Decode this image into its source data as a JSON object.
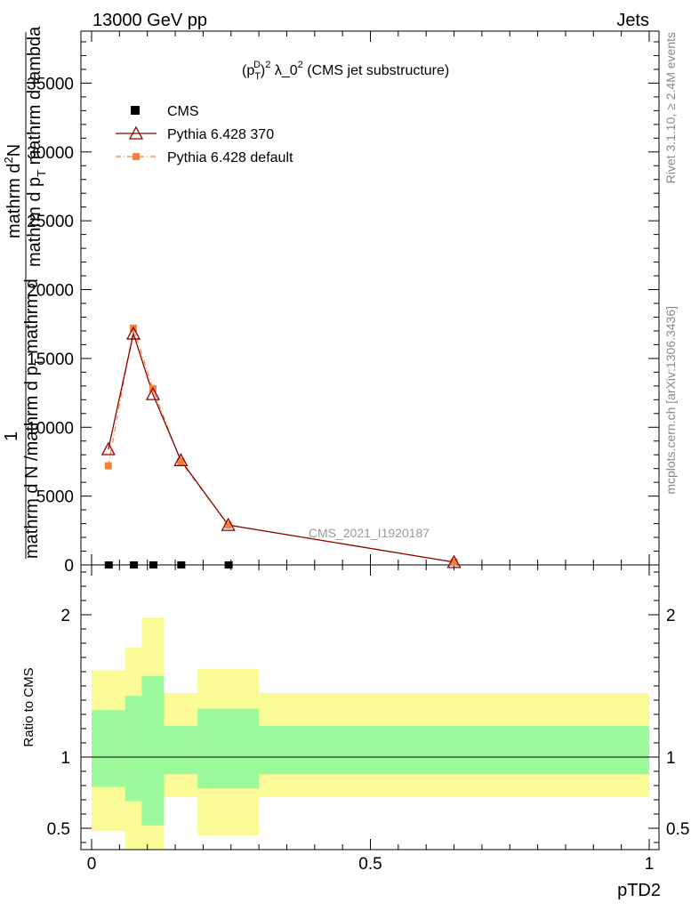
{
  "header": {
    "energy_label": "13000 GeV pp",
    "process_label": "Jets"
  },
  "side_labels": {
    "rivet": "Rivet 3.1.10, ≥ 2.4M events",
    "mcplots": "mcplots.cern.ch [arXiv:1306.3436]"
  },
  "main_plot": {
    "title_prefix": "(p",
    "title_sub": "T",
    "title_sup": "D",
    "title_main": ")",
    "title_suffix_sup": "2",
    "title_rest": " λ_0",
    "title_rest_sup": "2",
    "title_tail": " (CMS jet substructure)",
    "ylabel_top_1": "mathrm d",
    "ylabel_top_2": "N",
    "ylabel_top_3": "mathrm d p",
    "ylabel_top_4": "T",
    "ylabel_top_5": " mathrm d lambda",
    "ylabel_bottom_1": "mathrm d N /mathrm d p",
    "ylabel_bottom_2": "T",
    "ylabel_bottom_3": " mathrm d",
    "ylabel_one": "1",
    "ylabel_superscript": "2",
    "watermark": "CMS_2021_I1920187"
  },
  "ratio_plot": {
    "ylabel": "Ratio to CMS",
    "xlabel": "pTD2"
  },
  "legend": {
    "entries": [
      "CMS",
      "Pythia 6.428 370",
      "Pythia 6.428 default"
    ]
  },
  "colors": {
    "cms": "#000000",
    "pythia370": "#8b0000",
    "pythia_default": "#f5823c",
    "band_inner": "#9bf99b",
    "band_outer": "#fafa96"
  },
  "chart_data": {
    "type": "line",
    "title": "(p_T^D)^2 λ_0^2 (CMS jet substructure)",
    "xlabel": "pTD2",
    "ylabel": "1/(mathrm d N /mathrm d p_T mathrm d) mathrm d^2N/(mathrm d p_T mathrm d lambda)",
    "xlim": [
      0,
      1
    ],
    "ylim": [
      0,
      38000
    ],
    "y_ticks": [
      0,
      5000,
      10000,
      15000,
      20000,
      25000,
      30000,
      35000
    ],
    "x_ticks": [
      0,
      0.5,
      1
    ],
    "x_tick_labels": [
      "0",
      "0.5",
      "1"
    ],
    "y_tick_labels": [
      "0",
      "5000",
      "10000",
      "15000",
      "20000",
      "25000",
      "30000",
      "35000"
    ],
    "series": [
      {
        "name": "CMS",
        "marker": "square",
        "x": [
          0.03,
          0.075,
          0.11,
          0.16,
          0.245
        ],
        "y": [
          0,
          0,
          0,
          0,
          0
        ]
      },
      {
        "name": "Pythia 6.428 370",
        "marker": "triangle",
        "x": [
          0.03,
          0.075,
          0.11,
          0.16,
          0.245,
          0.65
        ],
        "y": [
          8400,
          16800,
          12400,
          7600,
          2900,
          200
        ]
      },
      {
        "name": "Pythia 6.428 default",
        "marker": "square",
        "x": [
          0.03,
          0.075,
          0.11,
          0.16,
          0.245,
          0.65
        ],
        "y": [
          7200,
          17200,
          12800,
          7500,
          2900,
          200
        ]
      }
    ],
    "ratio": {
      "ylim": [
        0.35,
        2.35
      ],
      "y_ticks": [
        0.5,
        1,
        2
      ],
      "y_tick_labels": [
        "0.5",
        "1",
        "2"
      ],
      "bins": [
        {
          "x0": 0.0,
          "x1": 0.06,
          "inner": [
            0.79,
            1.33
          ],
          "outer": [
            0.48,
            1.61
          ]
        },
        {
          "x0": 0.06,
          "x1": 0.09,
          "inner": [
            0.69,
            1.43
          ],
          "outer": [
            0.35,
            1.77
          ]
        },
        {
          "x0": 0.09,
          "x1": 0.13,
          "inner": [
            0.52,
            1.57
          ],
          "outer": [
            0.35,
            1.98
          ]
        },
        {
          "x0": 0.13,
          "x1": 0.19,
          "inner": [
            0.88,
            1.22
          ],
          "outer": [
            0.72,
            1.45
          ]
        },
        {
          "x0": 0.19,
          "x1": 0.3,
          "inner": [
            0.78,
            1.34
          ],
          "outer": [
            0.45,
            1.62
          ]
        },
        {
          "x0": 0.3,
          "x1": 1.0,
          "inner": [
            0.88,
            1.22
          ],
          "outer": [
            0.72,
            1.45
          ]
        }
      ]
    }
  }
}
